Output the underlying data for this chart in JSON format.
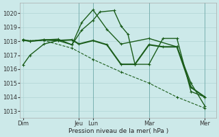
{
  "background_color": "#cce9e9",
  "grid_color": "#b0d4d4",
  "line_color": "#1a5c1a",
  "xlabel": "Pression niveau de la mer( hPa )",
  "ylim": [
    1012.5,
    1020.75
  ],
  "yticks": [
    1013,
    1014,
    1015,
    1016,
    1017,
    1018,
    1019,
    1020
  ],
  "xtick_labels": [
    "Dim",
    "Jeu",
    "Lun",
    "Mar",
    "Mer"
  ],
  "xtick_positions": [
    0,
    4,
    5,
    9,
    13
  ],
  "xlim": [
    -0.2,
    13.8
  ],
  "series": [
    {
      "x": [
        0,
        0.5,
        1.5,
        2.5,
        3.5,
        4.2,
        5.0,
        5.5,
        6.5,
        7.0,
        7.5,
        8.0,
        9.0,
        10.0,
        11.0,
        12.0,
        13.0
      ],
      "y": [
        1016.3,
        1017.0,
        1017.8,
        1018.05,
        1017.75,
        1018.8,
        1019.5,
        1020.1,
        1020.2,
        1019.1,
        1018.5,
        1016.35,
        1016.35,
        1018.2,
        1018.2,
        1014.4,
        1014.0
      ],
      "linestyle": "-",
      "lw": 1.0
    },
    {
      "x": [
        0,
        0.5,
        1.5,
        2.5,
        3.5,
        4.0,
        5.0,
        6.0,
        7.0,
        8.0,
        9.0,
        10.0,
        11.0,
        12.0,
        13.0
      ],
      "y": [
        1018.1,
        1018.0,
        1018.1,
        1018.05,
        1018.1,
        1017.8,
        1018.05,
        1017.75,
        1016.35,
        1016.35,
        1017.75,
        1017.6,
        1017.6,
        1014.7,
        1014.0
      ],
      "linestyle": "-",
      "lw": 1.5
    },
    {
      "x": [
        0,
        0.5,
        1.5,
        2.5,
        3.5,
        4.2,
        5.0,
        6.0,
        7.0,
        9.0,
        11.0,
        12.0,
        13.0
      ],
      "y": [
        1018.1,
        1018.0,
        1018.1,
        1018.15,
        1017.75,
        1019.35,
        1020.25,
        1018.85,
        1017.8,
        1018.2,
        1017.6,
        1015.0,
        1013.35
      ],
      "linestyle": "-",
      "lw": 1.0
    },
    {
      "x": [
        0,
        1.5,
        3.5,
        5.0,
        7.0,
        9.0,
        11.0,
        13.0
      ],
      "y": [
        1018.05,
        1018.05,
        1017.5,
        1016.7,
        1015.8,
        1015.0,
        1014.0,
        1013.2
      ],
      "linestyle": "--",
      "lw": 0.8
    }
  ],
  "vlines": [
    4.0,
    5.0,
    9.0,
    13.0
  ]
}
